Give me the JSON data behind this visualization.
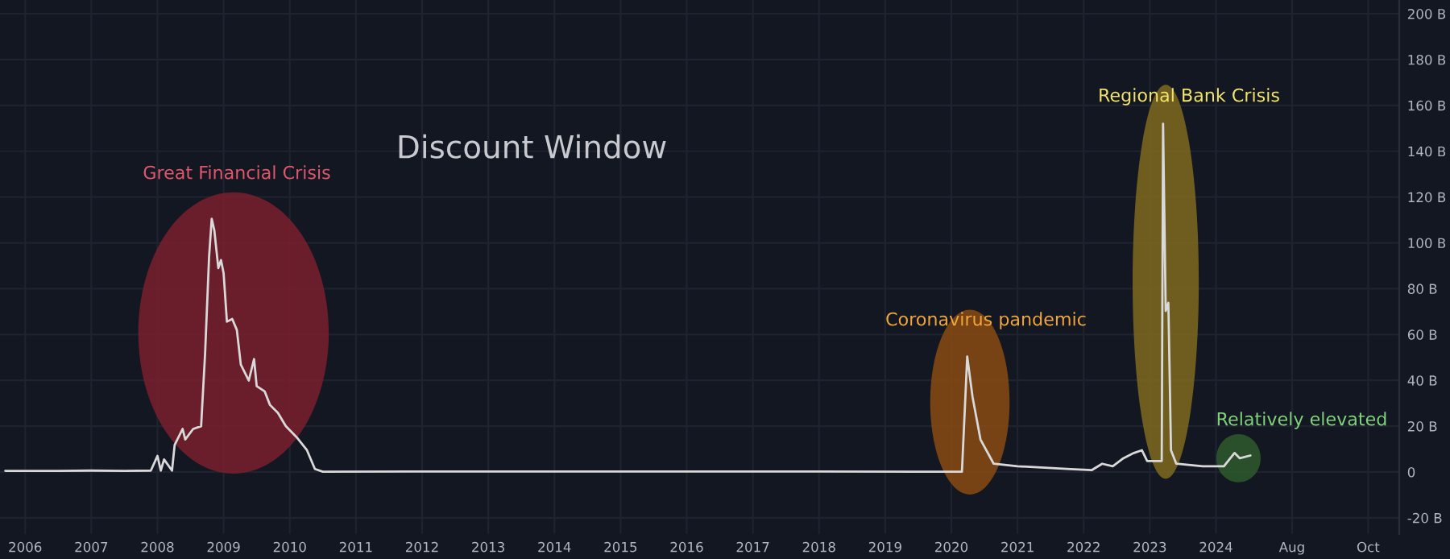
{
  "chart_data": {
    "type": "line",
    "title": "Discount Window",
    "x": [
      2005.7,
      2006.2,
      2006.5,
      2007.0,
      2007.5,
      2007.9,
      2008.0,
      2008.05,
      2008.1,
      2008.22,
      2008.26,
      2008.38,
      2008.42,
      2008.54,
      2008.66,
      2008.72,
      2008.78,
      2008.82,
      2008.86,
      2008.92,
      2008.96,
      2009.0,
      2009.05,
      2009.13,
      2009.2,
      2009.26,
      2009.38,
      2009.46,
      2009.5,
      2009.62,
      2009.7,
      2009.82,
      2009.94,
      2010.1,
      2010.26,
      2010.38,
      2010.5,
      2012.0,
      2014.0,
      2016.0,
      2018.0,
      2019.5,
      2020.16,
      2020.24,
      2020.32,
      2020.44,
      2020.64,
      2021.0,
      2021.8,
      2022.12,
      2022.28,
      2022.44,
      2022.6,
      2022.76,
      2022.88,
      2022.96,
      2023.12,
      2023.18,
      2023.2,
      2023.24,
      2023.28,
      2023.32,
      2023.4,
      2023.8,
      2024.12,
      2024.28,
      2024.36,
      2024.52
    ],
    "series": [
      {
        "color": "#d9d9d9",
        "values": [
          0.5,
          0.5,
          0.5,
          0.6,
          0.5,
          0.6,
          7,
          0.6,
          5.5,
          0.6,
          11.8,
          18.8,
          14.2,
          18.8,
          20,
          51.6,
          93.7,
          110.5,
          105.4,
          89,
          92.5,
          86.7,
          65.6,
          66.8,
          62,
          46.9,
          39.9,
          49.3,
          37.5,
          35.2,
          29.3,
          25.8,
          20,
          15.3,
          9.5,
          1.3,
          0.1,
          0.2,
          0.2,
          0.2,
          0.2,
          0.1,
          0.1,
          50.4,
          32.8,
          14.2,
          3.6,
          2.5,
          1.3,
          0.8,
          3.6,
          2.5,
          6,
          8.3,
          9.5,
          4.8,
          4.8,
          4.8,
          152,
          70.3,
          73.8,
          9.5,
          3.6,
          2.5,
          2.5,
          8.3,
          6,
          7.2
        ]
      }
    ],
    "xlim": [
      2005.62,
      2026.77
    ],
    "xticks": [
      2006,
      2007,
      2008,
      2009,
      2010,
      2011,
      2012,
      2013,
      2014,
      2015,
      2016,
      2017,
      2018,
      2019,
      2020,
      2021,
      2022,
      2023,
      2024,
      {
        "value": 2025.15,
        "label": "Aug"
      },
      {
        "value": 2026.3,
        "label": "Oct"
      }
    ],
    "ylim": [
      -27,
      206
    ],
    "yticks": [
      {
        "value": -20,
        "label": "-20 B"
      },
      {
        "value": 0,
        "label": "0"
      },
      {
        "value": 20,
        "label": "20 B"
      },
      {
        "value": 40,
        "label": "40 B"
      },
      {
        "value": 60,
        "label": "60 B"
      },
      {
        "value": 80,
        "label": "80 B"
      },
      {
        "value": 100,
        "label": "100 B"
      },
      {
        "value": 120,
        "label": "120 B"
      },
      {
        "value": 140,
        "label": "140 B"
      },
      {
        "value": 160,
        "label": "160 B"
      },
      {
        "value": 180,
        "label": "180 B"
      },
      {
        "value": 200,
        "label": "200 B"
      }
    ],
    "annotations": [
      "Great Financial Crisis",
      "Coronavirus pandemic",
      "Regional Bank Crisis",
      "Relatively elevated"
    ],
    "grid": true,
    "marker": "none",
    "line_style": "solid"
  }
}
